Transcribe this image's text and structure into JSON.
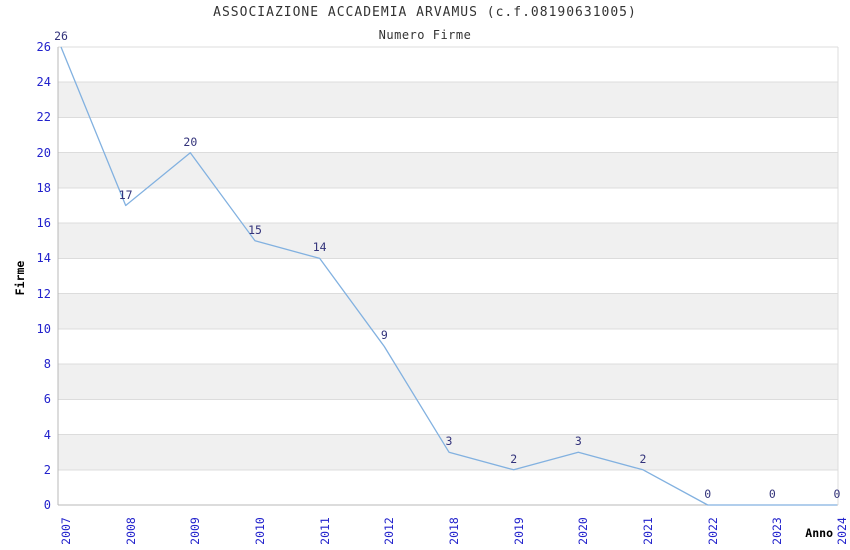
{
  "chart_data": {
    "type": "line",
    "title": "ASSOCIAZIONE ACCADEMIA ARVAMUS (c.f.08190631005)",
    "subtitle": "Numero Firme",
    "xlabel": "Anno",
    "ylabel": "Firme",
    "categories": [
      "2007",
      "2008",
      "2009",
      "2010",
      "2011",
      "2012",
      "2018",
      "2019",
      "2020",
      "2021",
      "2022",
      "2023",
      "2024"
    ],
    "values": [
      26,
      17,
      20,
      15,
      14,
      9,
      3,
      2,
      3,
      2,
      0,
      0,
      0
    ],
    "data_labels": [
      "26",
      "17",
      "20",
      "15",
      "14",
      "9",
      "3",
      "2",
      "3",
      "2",
      "0",
      "0",
      "0"
    ],
    "ylim": [
      0,
      26
    ],
    "ytick_step": 2,
    "grid": true,
    "alternating_bands": true,
    "legend_position": "none",
    "colors": {
      "line": "#82b1e0",
      "tick_label": "#2222cc",
      "data_label": "#32327a",
      "band": "#f0f0f0",
      "grid": "#dcdcdc",
      "spine": "#b8b8b8",
      "title": "#333333",
      "subtitle": "#333333",
      "axis_title": "#000000",
      "background": "#ffffff"
    }
  }
}
